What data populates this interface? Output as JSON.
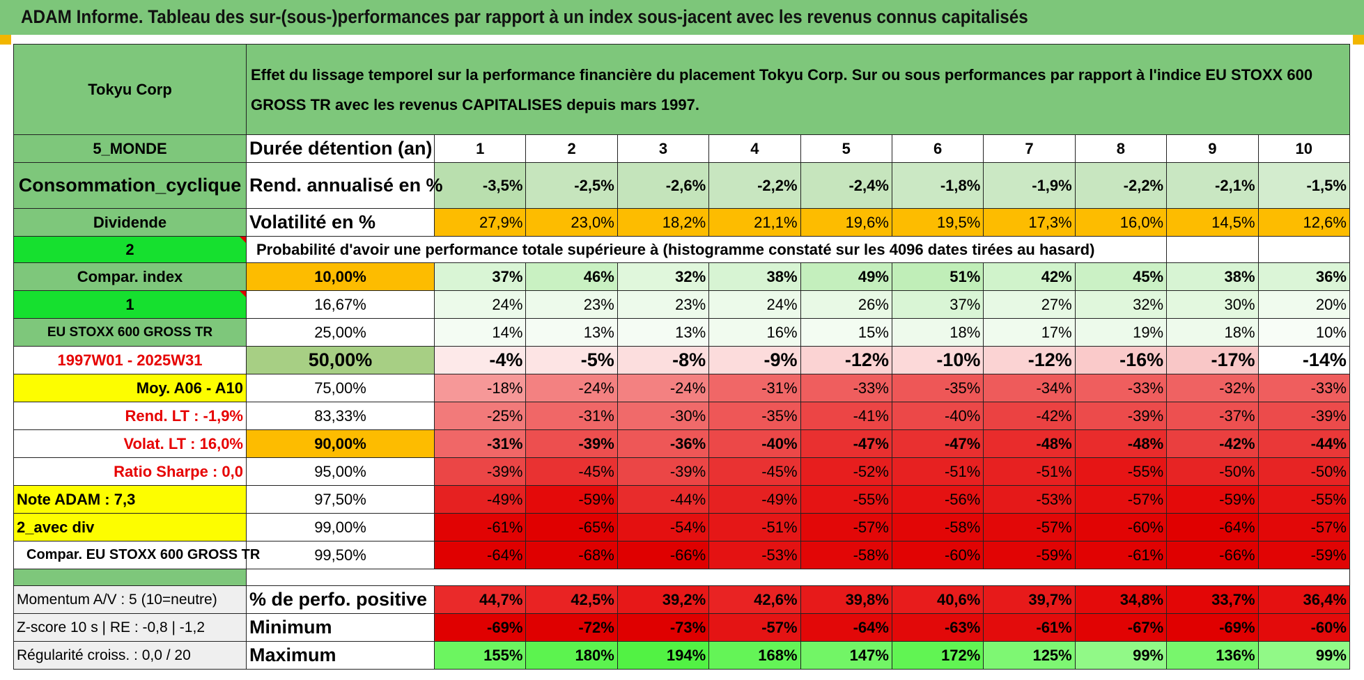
{
  "title": "ADAM Informe. Tableau des sur-(sous-)performances par rapport à un index sous-jacent avec les revenus connus capitalisés",
  "colors": {
    "header_green": "#7ec77b",
    "bright_green": "#16e02f",
    "yellow": "#fdfd00",
    "orange": "#fdbc00",
    "red_text": "#e60000"
  },
  "left": {
    "company": "Tokyu Corp",
    "region": "5_MONDE",
    "sector": "Consommation_cyclique",
    "dividend": "Dividende",
    "selector1": "2",
    "compar_index": "Compar. index",
    "selector2": "1",
    "index_name": "EU STOXX 600 GROSS TR",
    "period": "1997W01 - 2025W31",
    "moy": "Moy. A06 - A10",
    "rend_lt": "Rend. LT :   -1,9%",
    "volat_lt": "Volat. LT :   16,0%",
    "sharpe": "Ratio Sharpe :    0,0",
    "note": "Note ADAM : 7,3",
    "div_mode": "2_avec div",
    "compar_full": "Compar. EU STOXX 600 GROSS TR",
    "momentum": "Momentum A/V : 5 (10=neutre)",
    "zscore": "Z-score 10 s | RE : -0,8 | -1,2",
    "regularite": "Régularité croiss. : 0,0 / 20"
  },
  "description": "Effet du lissage temporel sur la performance financière du placement Tokyu Corp. Sur ou sous performances par rapport à l'indice EU STOXX 600 GROSS TR avec les revenus CAPITALISES depuis mars 1997.",
  "holding": {
    "label": "Durée détention (an)",
    "years": [
      "1",
      "2",
      "3",
      "4",
      "5",
      "6",
      "7",
      "8",
      "9",
      "10"
    ]
  },
  "rend": {
    "label": "Rend. annualisé en %",
    "values": [
      "-3,5%",
      "-2,5%",
      "-2,6%",
      "-2,2%",
      "-2,4%",
      "-1,8%",
      "-1,9%",
      "-2,2%",
      "-2,1%",
      "-1,5%"
    ]
  },
  "vol": {
    "label": "Volatilité en %",
    "values": [
      "27,9%",
      "23,0%",
      "18,2%",
      "21,1%",
      "19,6%",
      "19,5%",
      "17,3%",
      "16,0%",
      "14,5%",
      "12,6%"
    ]
  },
  "prob_label": "Probabilité d'avoir une performance totale supérieure à (histogramme constaté sur les 4096 dates tirées au hasard)",
  "probs": [
    {
      "p": "10,00%",
      "values": [
        "37%",
        "46%",
        "32%",
        "38%",
        "49%",
        "51%",
        "42%",
        "45%",
        "38%",
        "36%"
      ]
    },
    {
      "p": "16,67%",
      "values": [
        "24%",
        "23%",
        "23%",
        "24%",
        "26%",
        "37%",
        "27%",
        "32%",
        "30%",
        "20%"
      ]
    },
    {
      "p": "25,00%",
      "values": [
        "14%",
        "13%",
        "13%",
        "16%",
        "15%",
        "18%",
        "17%",
        "19%",
        "18%",
        "10%"
      ]
    },
    {
      "p": "50,00%",
      "values": [
        "-4%",
        "-5%",
        "-8%",
        "-9%",
        "-12%",
        "-10%",
        "-12%",
        "-16%",
        "-17%",
        "-14%"
      ]
    },
    {
      "p": "75,00%",
      "values": [
        "-18%",
        "-24%",
        "-24%",
        "-31%",
        "-33%",
        "-35%",
        "-34%",
        "-33%",
        "-32%",
        "-33%"
      ]
    },
    {
      "p": "83,33%",
      "values": [
        "-25%",
        "-31%",
        "-30%",
        "-35%",
        "-41%",
        "-40%",
        "-42%",
        "-39%",
        "-37%",
        "-39%"
      ]
    },
    {
      "p": "90,00%",
      "values": [
        "-31%",
        "-39%",
        "-36%",
        "-40%",
        "-47%",
        "-47%",
        "-48%",
        "-48%",
        "-42%",
        "-44%"
      ]
    },
    {
      "p": "95,00%",
      "values": [
        "-39%",
        "-45%",
        "-39%",
        "-45%",
        "-52%",
        "-51%",
        "-51%",
        "-55%",
        "-50%",
        "-50%"
      ]
    },
    {
      "p": "97,50%",
      "values": [
        "-49%",
        "-59%",
        "-44%",
        "-49%",
        "-55%",
        "-56%",
        "-53%",
        "-57%",
        "-59%",
        "-55%"
      ]
    },
    {
      "p": "99,00%",
      "values": [
        "-61%",
        "-65%",
        "-54%",
        "-51%",
        "-57%",
        "-58%",
        "-57%",
        "-60%",
        "-64%",
        "-57%"
      ]
    },
    {
      "p": "99,50%",
      "values": [
        "-64%",
        "-68%",
        "-66%",
        "-53%",
        "-58%",
        "-60%",
        "-59%",
        "-61%",
        "-66%",
        "-59%"
      ]
    }
  ],
  "stats": [
    {
      "label": "% de perfo. positive",
      "values": [
        "44,7%",
        "42,5%",
        "39,2%",
        "42,6%",
        "39,8%",
        "40,6%",
        "39,7%",
        "34,8%",
        "33,7%",
        "36,4%"
      ]
    },
    {
      "label": "Minimum",
      "values": [
        "-69%",
        "-72%",
        "-73%",
        "-57%",
        "-64%",
        "-63%",
        "-61%",
        "-67%",
        "-69%",
        "-60%"
      ]
    },
    {
      "label": "Maximum",
      "values": [
        "155%",
        "180%",
        "194%",
        "168%",
        "147%",
        "172%",
        "125%",
        "99%",
        "136%",
        "99%"
      ]
    }
  ]
}
